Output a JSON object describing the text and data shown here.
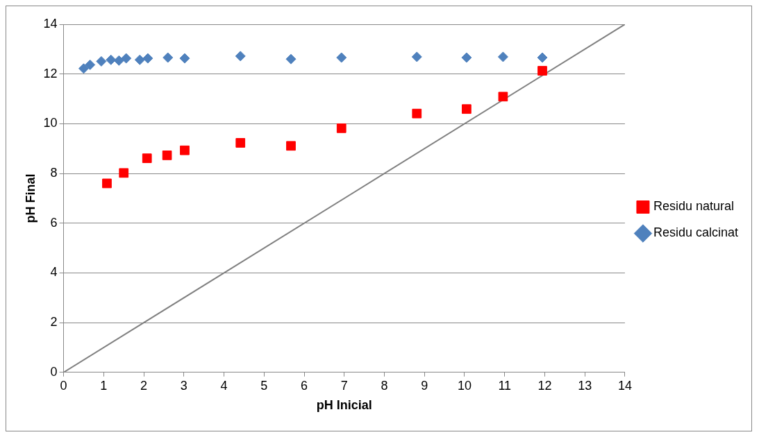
{
  "chart_data": {
    "type": "scatter",
    "xlabel": "pH Inicial",
    "ylabel": "pH Final",
    "xlim": [
      0,
      14
    ],
    "ylim": [
      0,
      14
    ],
    "xticks": [
      0,
      1,
      2,
      3,
      4,
      5,
      6,
      7,
      8,
      9,
      10,
      11,
      12,
      13,
      14
    ],
    "yticks": [
      0,
      2,
      4,
      6,
      8,
      10,
      12,
      14
    ],
    "grid": "y",
    "legend": "right",
    "series": [
      {
        "name": "Residu natural",
        "color": "#ff0000",
        "marker": "square",
        "x": [
          1.08,
          1.5,
          2.08,
          2.58,
          3.02,
          4.41,
          5.67,
          6.93,
          8.81,
          10.05,
          10.96,
          11.94
        ],
        "values": [
          7.6,
          8.02,
          8.61,
          8.73,
          8.93,
          9.23,
          9.11,
          9.82,
          10.41,
          10.59,
          11.09,
          12.13
        ]
      },
      {
        "name": "Residu calcinat",
        "color": "#4f81bd",
        "marker": "diamond",
        "x": [
          0.5,
          0.66,
          0.94,
          1.18,
          1.38,
          1.56,
          1.9,
          2.1,
          2.6,
          3.02,
          4.41,
          5.67,
          6.93,
          8.81,
          10.05,
          10.96,
          11.94
        ],
        "values": [
          12.22,
          12.37,
          12.51,
          12.57,
          12.54,
          12.63,
          12.57,
          12.63,
          12.66,
          12.63,
          12.72,
          12.6,
          12.66,
          12.69,
          12.66,
          12.69,
          12.66
        ]
      },
      {
        "type": "line",
        "color": "#808080",
        "marker": "none",
        "x": [
          0,
          14
        ],
        "values": [
          0,
          14
        ]
      }
    ]
  }
}
